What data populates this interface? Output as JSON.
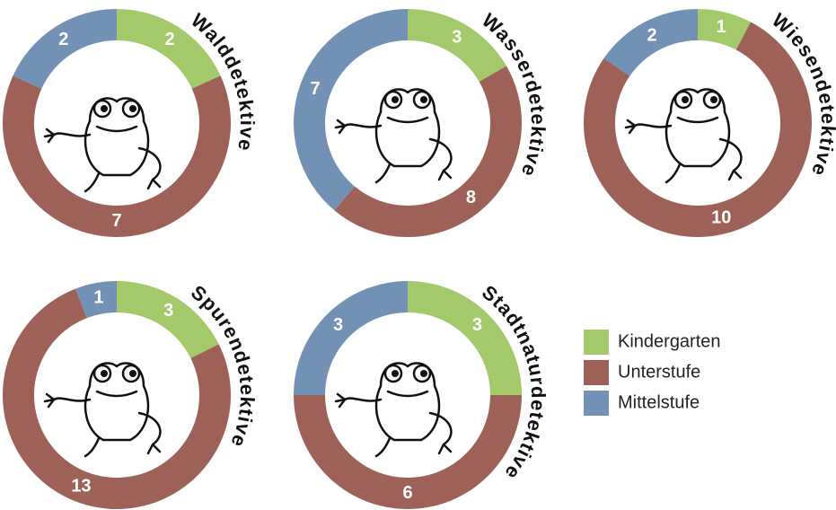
{
  "chart_data": [
    {
      "type": "pie",
      "title": "Walddetektive",
      "categories": [
        "Kindergarten",
        "Unterstufe",
        "Mittelstufe"
      ],
      "values": [
        2,
        7,
        2
      ],
      "colors": [
        "#a3c96a",
        "#9e6158",
        "#7292b5"
      ]
    },
    {
      "type": "pie",
      "title": "Wasserdetektive",
      "categories": [
        "Kindergarten",
        "Unterstufe",
        "Mittelstufe"
      ],
      "values": [
        3,
        8,
        7
      ],
      "colors": [
        "#a3c96a",
        "#9e6158",
        "#7292b5"
      ]
    },
    {
      "type": "pie",
      "title": "Wiesendetektive",
      "categories": [
        "Kindergarten",
        "Unterstufe",
        "Mittelstufe"
      ],
      "values": [
        1,
        10,
        2
      ],
      "colors": [
        "#a3c96a",
        "#9e6158",
        "#7292b5"
      ]
    },
    {
      "type": "pie",
      "title": "Spurendetektive",
      "categories": [
        "Kindergarten",
        "Unterstufe",
        "Mittelstufe"
      ],
      "values": [
        3,
        13,
        1
      ],
      "colors": [
        "#a3c96a",
        "#9e6158",
        "#7292b5"
      ]
    },
    {
      "type": "pie",
      "title": "Stadtnaturdetektive",
      "categories": [
        "Kindergarten",
        "Unterstufe",
        "Mittelstufe"
      ],
      "values": [
        3,
        6,
        3
      ],
      "colors": [
        "#a3c96a",
        "#9e6158",
        "#7292b5"
      ]
    }
  ]
}
